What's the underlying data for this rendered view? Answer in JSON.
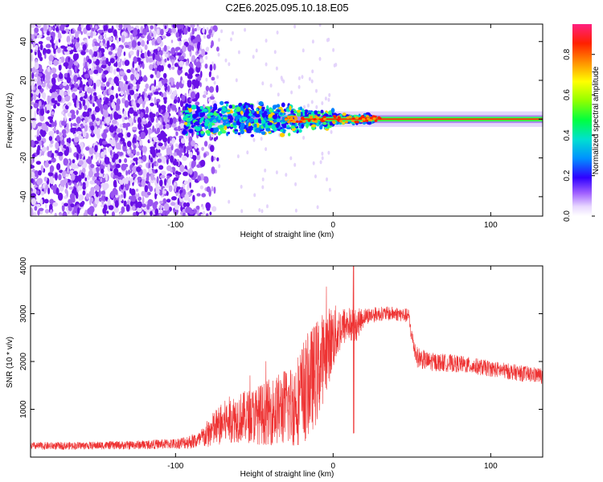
{
  "chart_data": [
    {
      "type": "heatmap",
      "title": "C2E6.2025.095.10.18.E05",
      "xlabel": "Height of straight line (km)",
      "ylabel": "Frequency (Hz)",
      "xlim": [
        -192,
        133
      ],
      "ylim": [
        -50,
        49
      ],
      "xticks": [
        -100,
        0,
        100
      ],
      "xtick_labels": [
        "-100",
        "0",
        "100"
      ],
      "yticks": [
        -40,
        -20,
        0,
        20,
        40
      ],
      "ytick_labels": [
        "-40",
        "-20",
        "0",
        "20",
        "40"
      ],
      "colorbar": {
        "label": "Normalized spectral amplitude",
        "range": [
          0.0,
          0.95
        ],
        "ticks": [
          0.0,
          0.2,
          0.4,
          0.6,
          0.8
        ],
        "tick_labels": [
          "0.0",
          "0.2",
          "0.4",
          "0.6",
          "0.8"
        ],
        "colormap": "rainbow"
      },
      "description_points": {
        "noise_region_x": [
          -192,
          -85
        ],
        "band_start_x": -95,
        "band_peak_x": [
          -60,
          -20
        ],
        "band_center_frequency": 0
      }
    },
    {
      "type": "line",
      "title": "",
      "xlabel": "Height of straight line (km)",
      "ylabel": "SNR (10 * v/v)",
      "xlim": [
        -192,
        133
      ],
      "ylim": [
        0,
        4000
      ],
      "xticks": [
        -100,
        0,
        100
      ],
      "xtick_labels": [
        "-100",
        "0",
        "100"
      ],
      "yticks": [
        1000,
        2000,
        3000,
        4000
      ],
      "ytick_labels": [
        "1000",
        "2000",
        "3000",
        "4000"
      ],
      "series": [
        {
          "name": "SNR",
          "color": "#ee3333",
          "x": [
            -192,
            -160,
            -130,
            -100,
            -85,
            -75,
            -65,
            -55,
            -45,
            -35,
            -25,
            -18,
            -10,
            -5,
            0,
            5,
            10,
            13,
            20,
            30,
            40,
            48,
            50,
            53,
            60,
            80,
            100,
            120,
            133
          ],
          "mean": [
            230,
            240,
            250,
            280,
            350,
            600,
            800,
            850,
            900,
            1000,
            1100,
            1400,
            1800,
            2200,
            2500,
            2700,
            2800,
            2700,
            2950,
            3000,
            3000,
            2950,
            2500,
            2100,
            2000,
            1950,
            1850,
            1750,
            1700
          ],
          "spread": [
            80,
            80,
            90,
            110,
            180,
            400,
            500,
            550,
            650,
            750,
            900,
            1100,
            1100,
            900,
            700,
            450,
            350,
            400,
            180,
            150,
            150,
            150,
            200,
            220,
            200,
            180,
            170,
            170,
            170
          ]
        }
      ]
    }
  ]
}
